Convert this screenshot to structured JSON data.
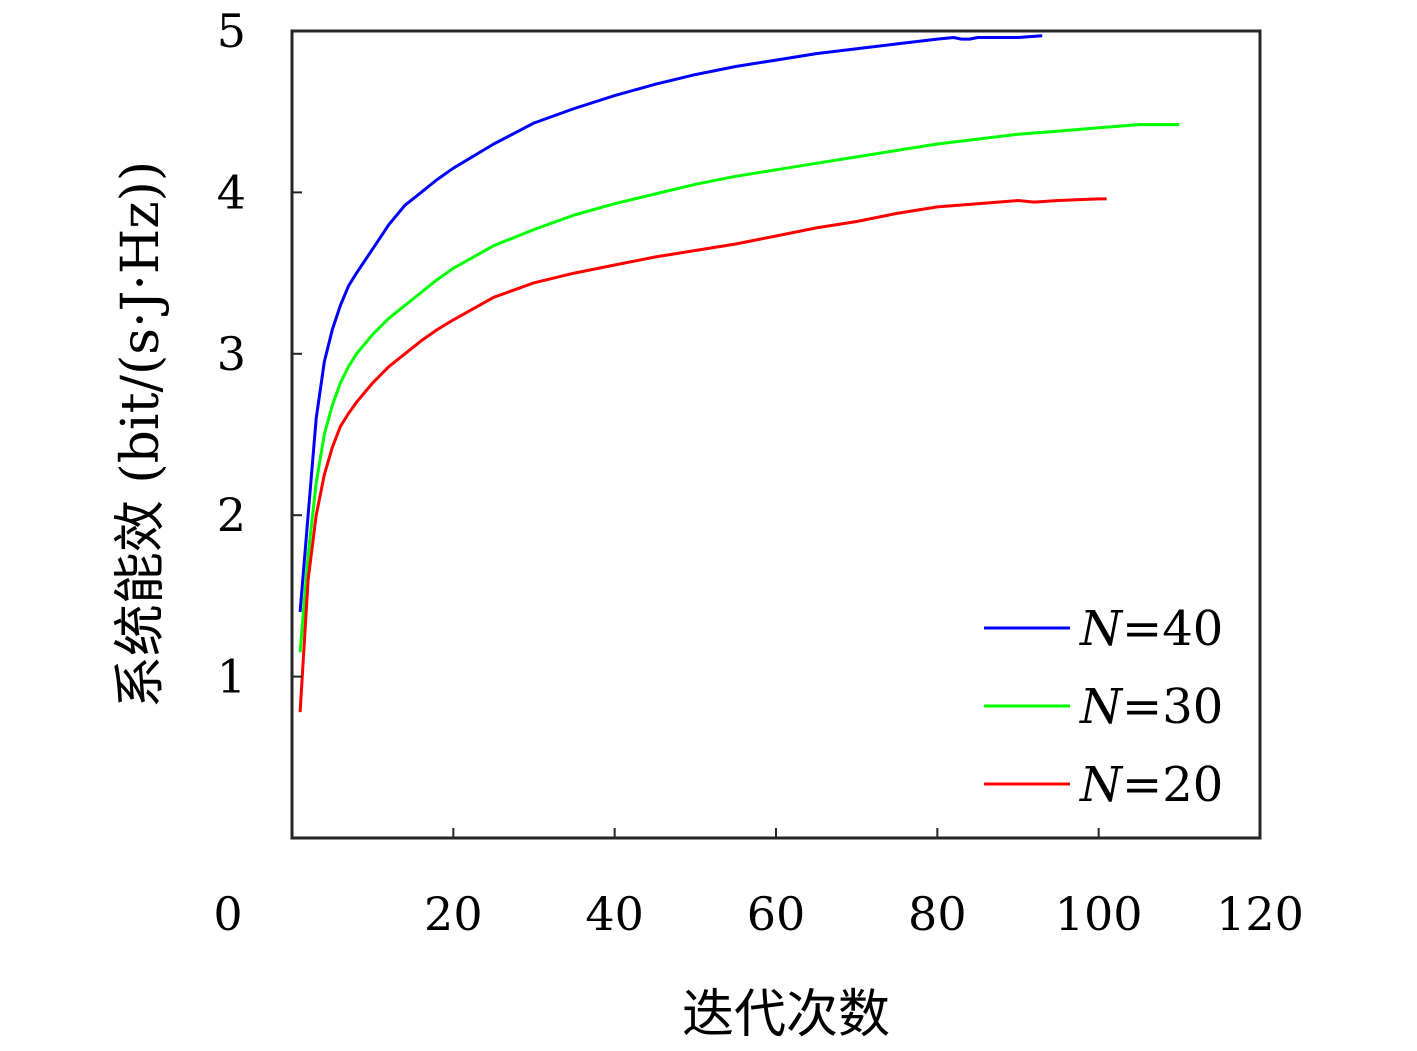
{
  "chart_data": {
    "type": "line",
    "xlabel": "迭代次数",
    "ylabel": "系统能效 (bit/(s·J·Hz))",
    "xlim": [
      0,
      120
    ],
    "ylim": [
      0,
      5
    ],
    "xticks": [
      0,
      20,
      40,
      60,
      80,
      100,
      120
    ],
    "yticks": [
      1,
      2,
      3,
      4,
      5
    ],
    "grid": false,
    "legend_position": "bottom-right",
    "series": [
      {
        "name": "N=40",
        "name_italic": "N",
        "name_rest": "=40",
        "color": "#0000ff",
        "x": [
          1,
          2,
          3,
          4,
          5,
          6,
          7,
          8,
          10,
          12,
          14,
          16,
          18,
          20,
          25,
          30,
          35,
          40,
          45,
          50,
          55,
          60,
          65,
          70,
          75,
          80,
          82,
          83,
          84,
          85,
          90,
          93
        ],
        "y": [
          1.4,
          2.0,
          2.6,
          2.95,
          3.15,
          3.3,
          3.42,
          3.5,
          3.65,
          3.8,
          3.92,
          4.0,
          4.08,
          4.15,
          4.3,
          4.43,
          4.52,
          4.6,
          4.67,
          4.73,
          4.78,
          4.82,
          4.86,
          4.89,
          4.92,
          4.95,
          4.96,
          4.95,
          4.95,
          4.96,
          4.96,
          4.97
        ]
      },
      {
        "name": "N=30",
        "name_italic": "N",
        "name_rest": "=30",
        "color": "#00ff00",
        "x": [
          1,
          2,
          3,
          4,
          5,
          6,
          7,
          8,
          10,
          12,
          14,
          16,
          18,
          20,
          25,
          30,
          35,
          40,
          45,
          50,
          55,
          60,
          65,
          70,
          75,
          80,
          85,
          90,
          95,
          100,
          105,
          110
        ],
        "y": [
          1.15,
          1.75,
          2.2,
          2.5,
          2.68,
          2.82,
          2.92,
          3.0,
          3.12,
          3.22,
          3.3,
          3.38,
          3.46,
          3.53,
          3.67,
          3.77,
          3.86,
          3.93,
          3.99,
          4.05,
          4.1,
          4.14,
          4.18,
          4.22,
          4.26,
          4.3,
          4.33,
          4.36,
          4.38,
          4.4,
          4.42,
          4.42
        ]
      },
      {
        "name": "N=20",
        "name_italic": "N",
        "name_rest": "=20",
        "color": "#ff0000",
        "x": [
          1,
          2,
          3,
          4,
          5,
          6,
          7,
          8,
          10,
          12,
          14,
          16,
          18,
          20,
          25,
          30,
          35,
          40,
          45,
          50,
          55,
          60,
          65,
          70,
          75,
          80,
          85,
          90,
          92,
          95,
          100,
          101
        ],
        "y": [
          0.78,
          1.6,
          2.0,
          2.25,
          2.42,
          2.55,
          2.63,
          2.7,
          2.82,
          2.92,
          3.0,
          3.08,
          3.15,
          3.21,
          3.35,
          3.44,
          3.5,
          3.55,
          3.6,
          3.64,
          3.68,
          3.73,
          3.78,
          3.82,
          3.87,
          3.91,
          3.93,
          3.95,
          3.94,
          3.95,
          3.96,
          3.96
        ]
      }
    ]
  }
}
